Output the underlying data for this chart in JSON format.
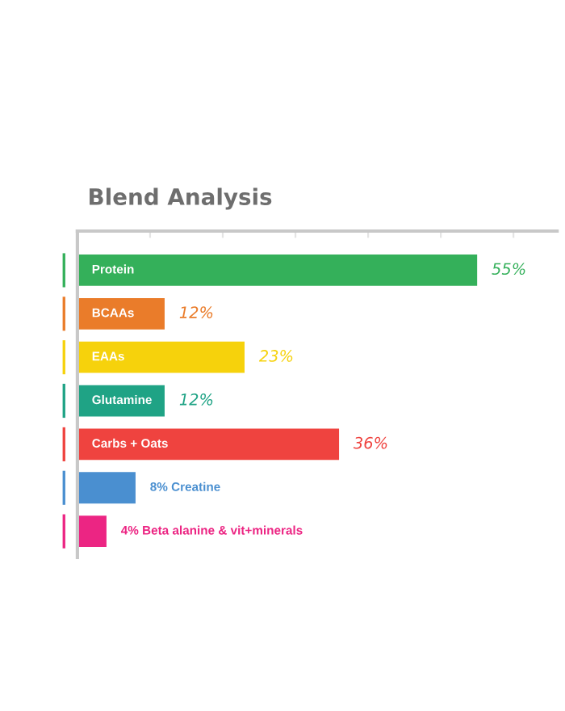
{
  "chart_data": {
    "type": "bar",
    "orientation": "horizontal",
    "title": "Blend Analysis",
    "categories": [
      "Protein",
      "BCAAs",
      "EAAs",
      "Glutamine",
      "Carbs + Oats",
      "Creatine",
      "Beta alanine & vit+minerals"
    ],
    "values": [
      55,
      12,
      23,
      12,
      36,
      8,
      4
    ],
    "value_labels": [
      "55%",
      "12%",
      "23%",
      "12%",
      "36%",
      "8%",
      "4%"
    ],
    "colors": [
      "#34b05a",
      "#ea7c2a",
      "#f6d20c",
      "#1fa385",
      "#ef433f",
      "#4a8fd0",
      "#ec2583"
    ],
    "xlim": [
      0,
      66
    ],
    "xticks": [
      {
        "value": 10,
        "label": null
      },
      {
        "value": 20,
        "label": null
      },
      {
        "value": 30,
        "label": null
      },
      {
        "value": 40,
        "label": null
      },
      {
        "value": 50,
        "label": null
      },
      {
        "value": 60,
        "label": null
      }
    ],
    "grid": false
  }
}
